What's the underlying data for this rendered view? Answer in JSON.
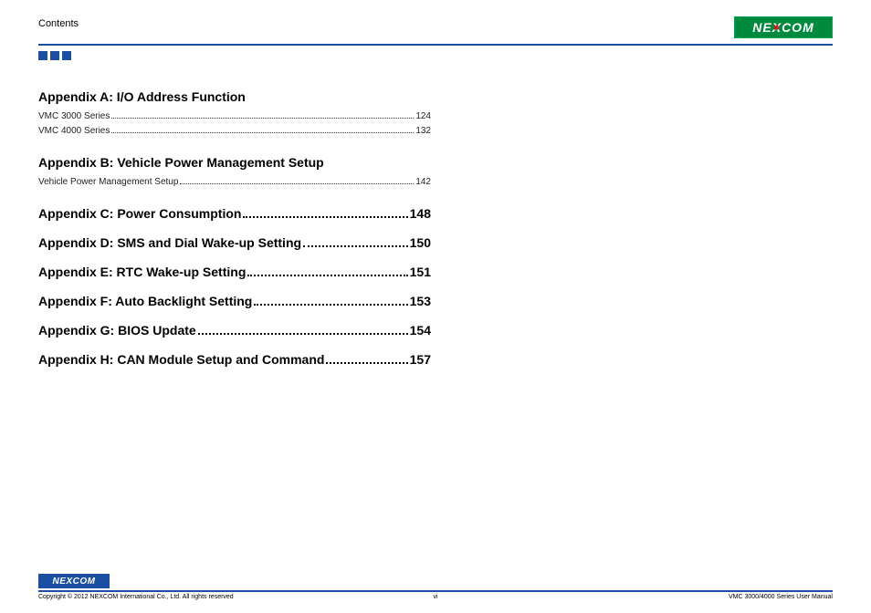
{
  "header": {
    "left_label": "Contents",
    "logo_text": "NE COM"
  },
  "squares_colors": [
    "#1a4fa3",
    "#1a4fa3",
    "#1a4fa3"
  ],
  "appendix_a": {
    "title": "Appendix A: I/O Address Function",
    "entries": [
      {
        "label": "VMC 3000 Series",
        "page": "124"
      },
      {
        "label": "VMC 4000 Series",
        "page": "132"
      }
    ]
  },
  "appendix_b": {
    "title": "Appendix B: Vehicle Power Management Setup",
    "entries": [
      {
        "label": "Vehicle Power Management Setup",
        "page": "142"
      }
    ]
  },
  "plain_appendices": [
    {
      "label": "Appendix C: Power Consumption",
      "page": "148"
    },
    {
      "label": "Appendix D: SMS and Dial Wake-up Setting",
      "page": "150"
    },
    {
      "label": "Appendix E: RTC Wake-up Setting",
      "page": "151"
    },
    {
      "label": "Appendix F: Auto Backlight Setting",
      "page": "153"
    },
    {
      "label": "Appendix G: BIOS Update",
      "page": "154"
    },
    {
      "label": "Appendix H: CAN Module Setup and Command",
      "page": "157"
    }
  ],
  "footer": {
    "logo_text": "NE COM",
    "copyright": "Copyright © 2012 NEXCOM International Co., Ltd. All rights reserved",
    "page_num": "vi",
    "doc_title": "VMC 3000/4000 Series User Manual"
  },
  "colors": {
    "rule": "#1a4fa3",
    "logo_green": "#008a3e",
    "text": "#000000"
  }
}
